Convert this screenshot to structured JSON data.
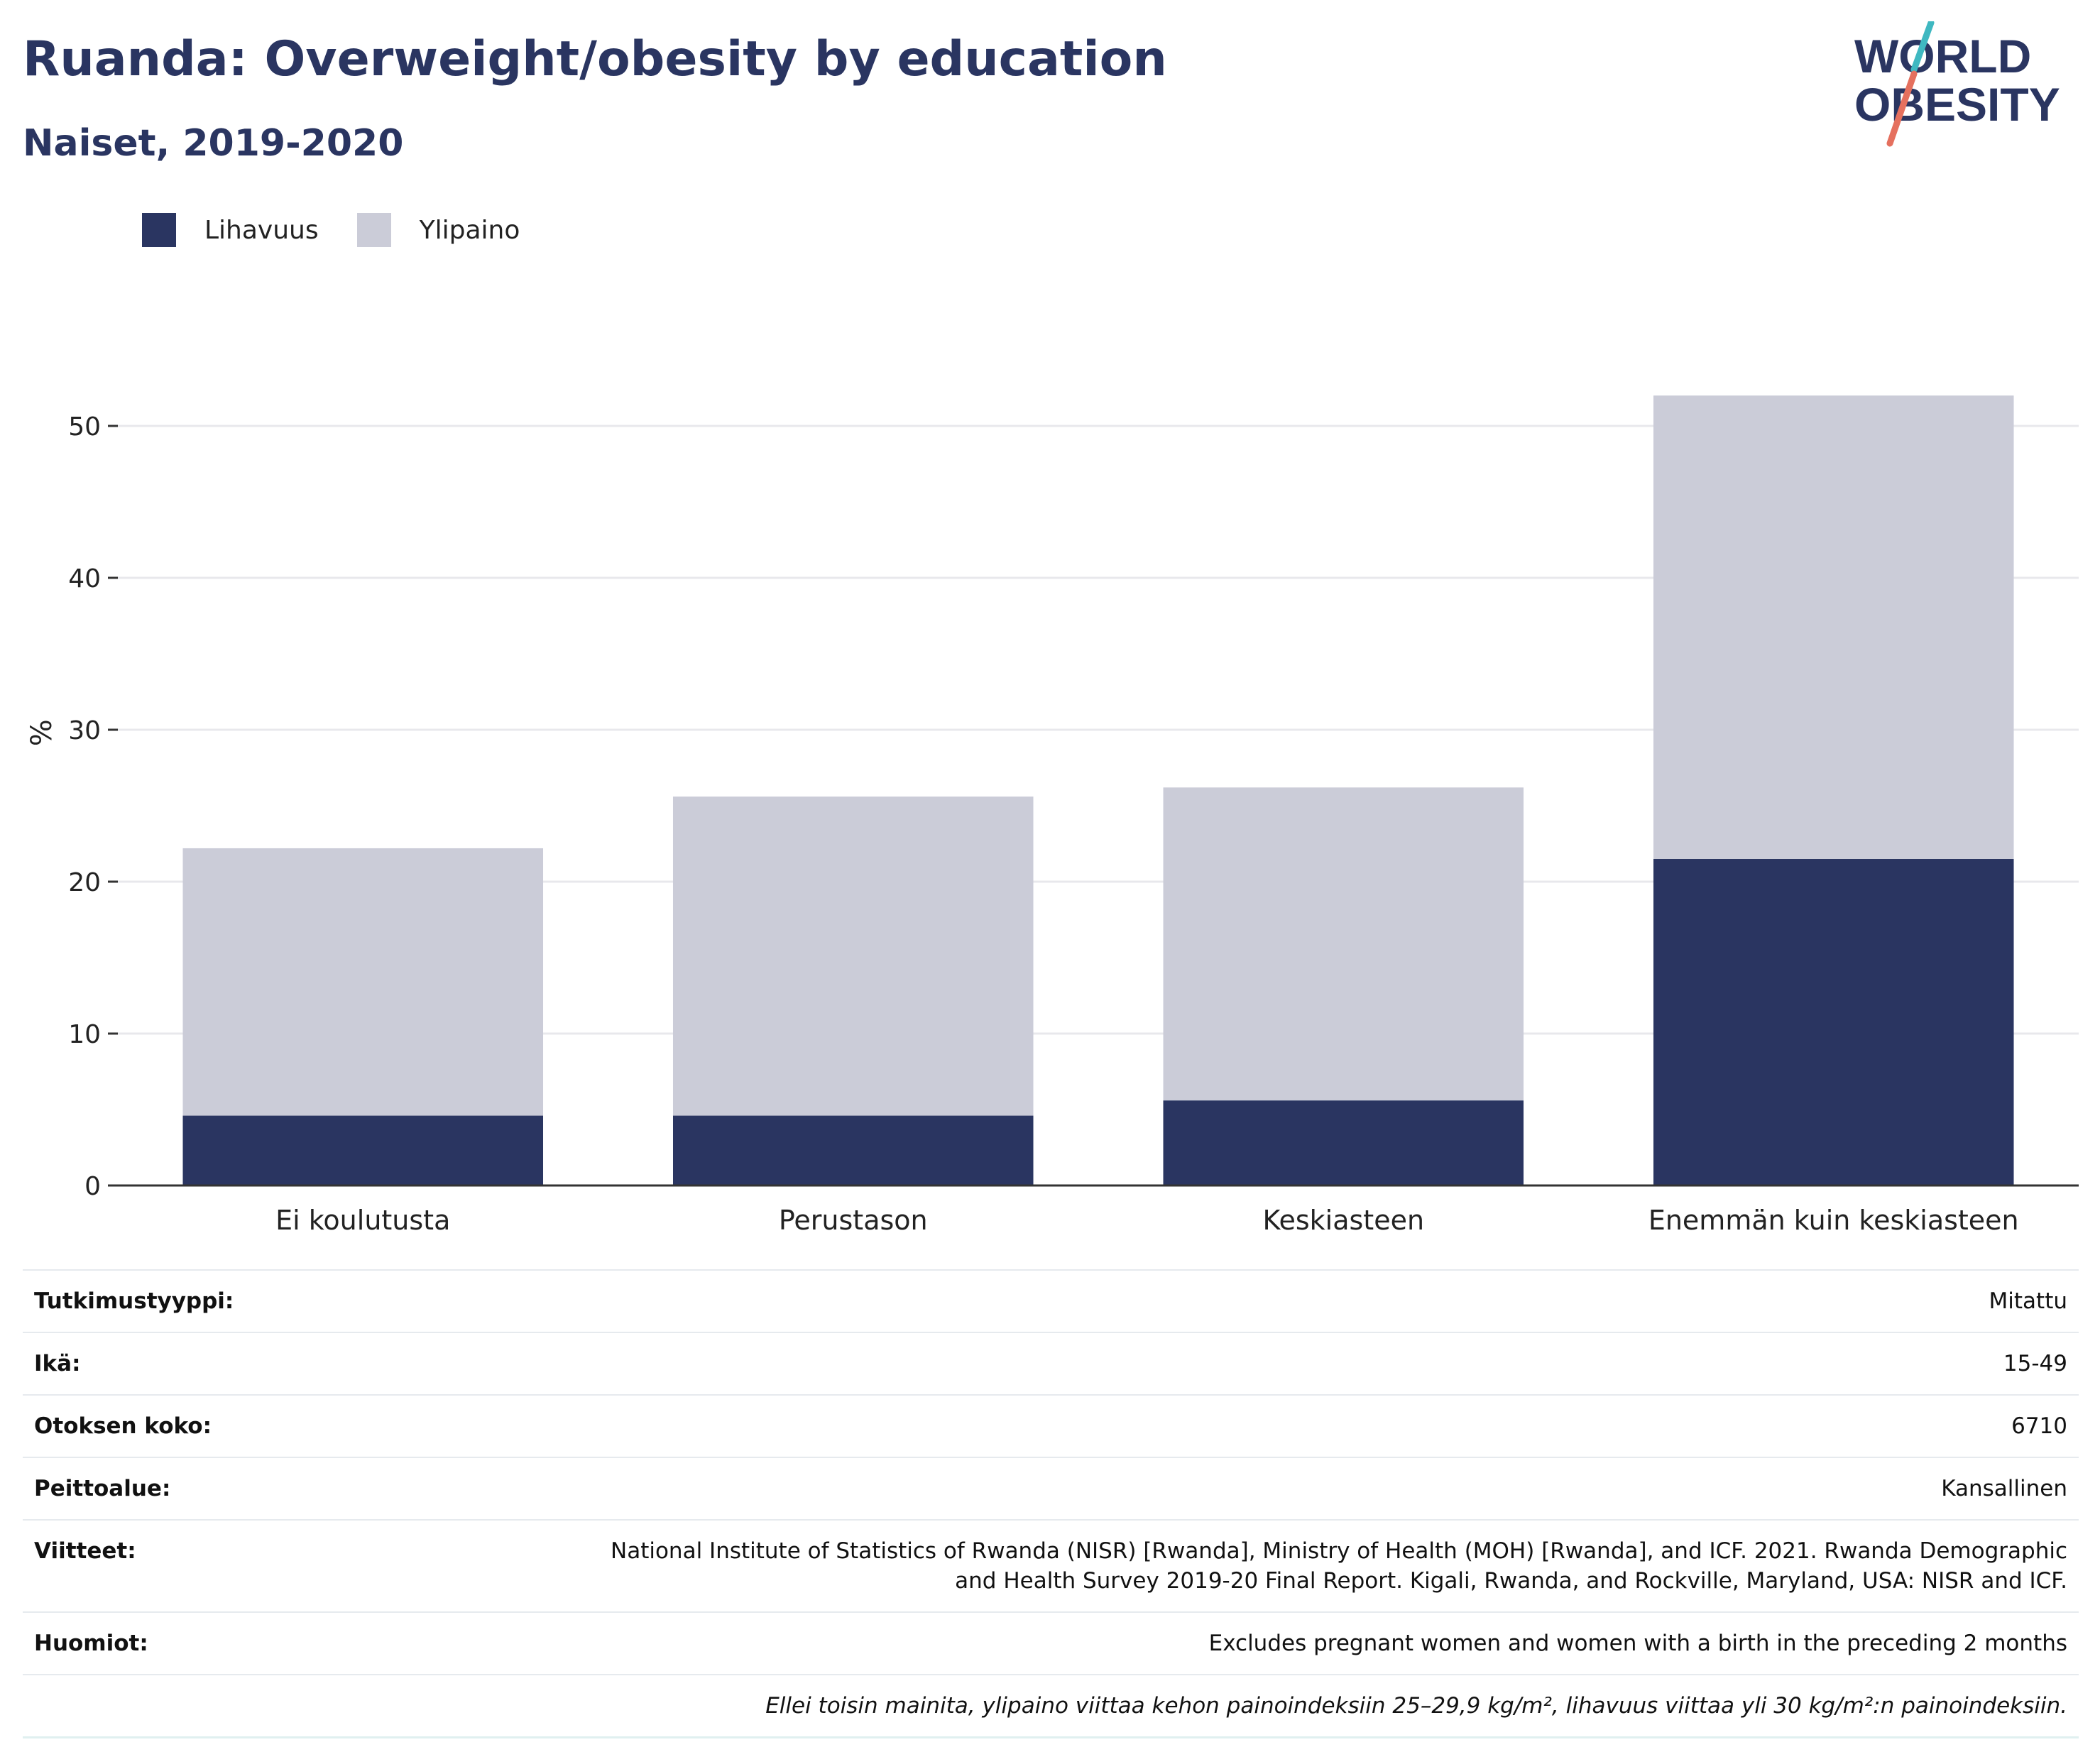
{
  "header": {
    "title": "Ruanda: Overweight/obesity by education",
    "subtitle": "Naiset, 2019-2020"
  },
  "logo": {
    "line1": "WORLD",
    "line2": "OBESITY",
    "colors": {
      "text": "#2a3561",
      "slash_top": "#3fb8c1",
      "slash_bottom": "#e5705e"
    }
  },
  "colors": {
    "obesity": "#2a3561",
    "overweight": "#cbccd8",
    "grid": "#e8e8ec",
    "axis": "#333333"
  },
  "chart_data": {
    "type": "bar",
    "stacked": true,
    "categories": [
      "Ei koulutusta",
      "Perustason",
      "Keskiasteen",
      "Enemmän kuin keskiasteen"
    ],
    "series": [
      {
        "name": "Lihavuus",
        "values": [
          4.6,
          4.6,
          5.6,
          21.5
        ]
      },
      {
        "name": "Ylipaino",
        "values": [
          17.6,
          21.0,
          20.6,
          30.5
        ]
      }
    ],
    "title": "Ruanda: Overweight/obesity by education",
    "subtitle": "Naiset, 2019-2020",
    "xlabel": "",
    "ylabel": "%",
    "ylim": [
      0,
      56
    ],
    "yticks": [
      0,
      10,
      20,
      30,
      40,
      50
    ],
    "grid": true,
    "legend_position": "top-left"
  },
  "meta": {
    "rows": [
      {
        "label": "Tutkimustyyppi:",
        "value": "Mitattu"
      },
      {
        "label": "Ikä:",
        "value": "15-49"
      },
      {
        "label": "Otoksen koko:",
        "value": "6710"
      },
      {
        "label": "Peittoalue:",
        "value": "Kansallinen"
      },
      {
        "label": "Viitteet:",
        "value": "National Institute of Statistics of Rwanda (NISR) [Rwanda], Ministry of Health (MOH) [Rwanda], and ICF. 2021. Rwanda Demographic and Health Survey 2019-20 Final Report. Kigali, Rwanda, and Rockville, Maryland, USA: NISR and ICF."
      },
      {
        "label": "Huomiot:",
        "value": "Excludes pregnant women and women with a birth in the preceding 2 months"
      }
    ],
    "note": "Ellei toisin mainita, ylipaino viittaa kehon painoindeksiin 25–29,9 kg/m², lihavuus viittaa yli 30 kg/m²:n painoindeksiin."
  }
}
